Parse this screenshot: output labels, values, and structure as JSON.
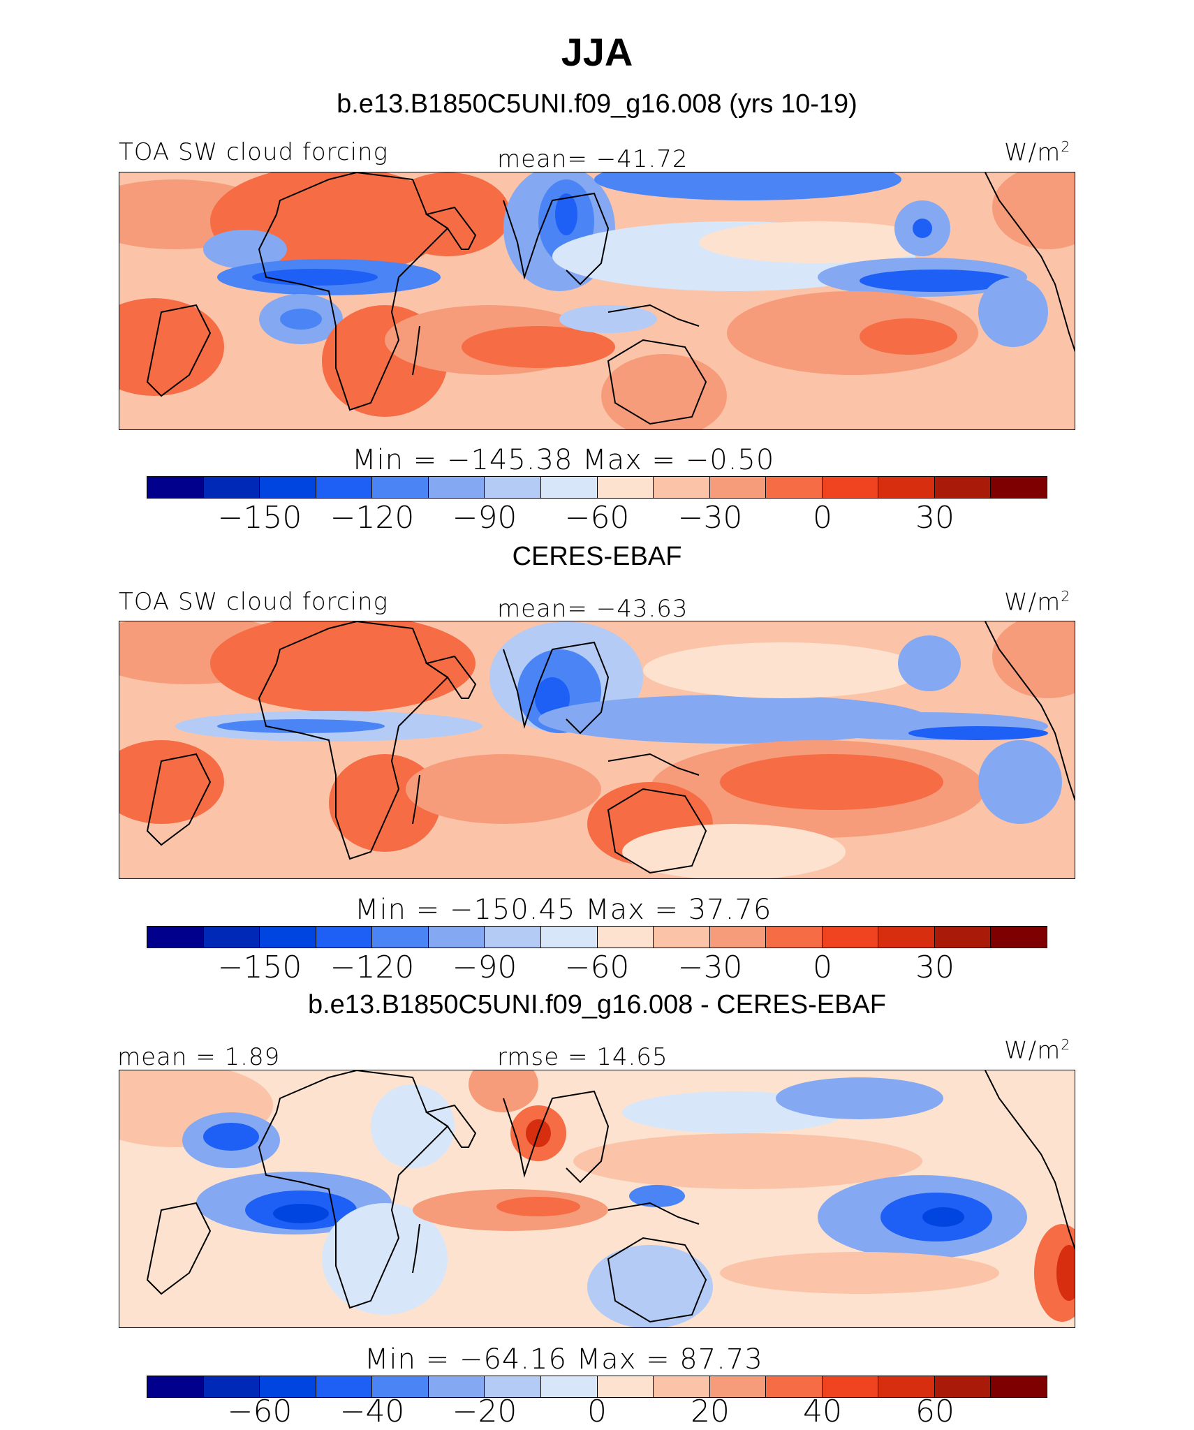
{
  "title": "JJA",
  "panels": [
    {
      "heading": "b.e13.B1850C5UNI.f09_g16.008 (yrs 10-19)",
      "left_label": "TOA SW cloud forcing",
      "center_label": "mean=  −41.72",
      "units": "W/m",
      "units_sup": "2",
      "minmax": "Min  =  −145.38  Max  =    −0.50",
      "ticks": [
        "−150",
        "−120",
        "−90",
        "−60",
        "−30",
        "0",
        "30"
      ]
    },
    {
      "heading": "CERES-EBAF",
      "left_label": "TOA SW cloud forcing",
      "center_label": "mean=  −43.63",
      "units": "W/m",
      "units_sup": "2",
      "minmax": "Min  =  −150.45  Max  =    37.76",
      "ticks": [
        "−150",
        "−120",
        "−90",
        "−60",
        "−30",
        "0",
        "30"
      ]
    },
    {
      "heading": "b.e13.B1850C5UNI.f09_g16.008 - CERES-EBAF",
      "left_label": "mean  =    1.89",
      "center_label": "rmse  =   14.65",
      "units": "W/m",
      "units_sup": "2",
      "minmax": "Min  =  −64.16  Max  =   87.73",
      "ticks": [
        "−60",
        "−40",
        "−20",
        "0",
        "20",
        "40",
        "60"
      ]
    }
  ],
  "colors": [
    "#00008c",
    "#0029b8",
    "#0045e0",
    "#1e5ff5",
    "#4a84f5",
    "#84a9f2",
    "#b3cbf5",
    "#d8e6fa",
    "#fde3cf",
    "#fbc4a8",
    "#f79c7a",
    "#f56c45",
    "#f04420",
    "#d62e0e",
    "#a91a08",
    "#7f0000"
  ]
}
